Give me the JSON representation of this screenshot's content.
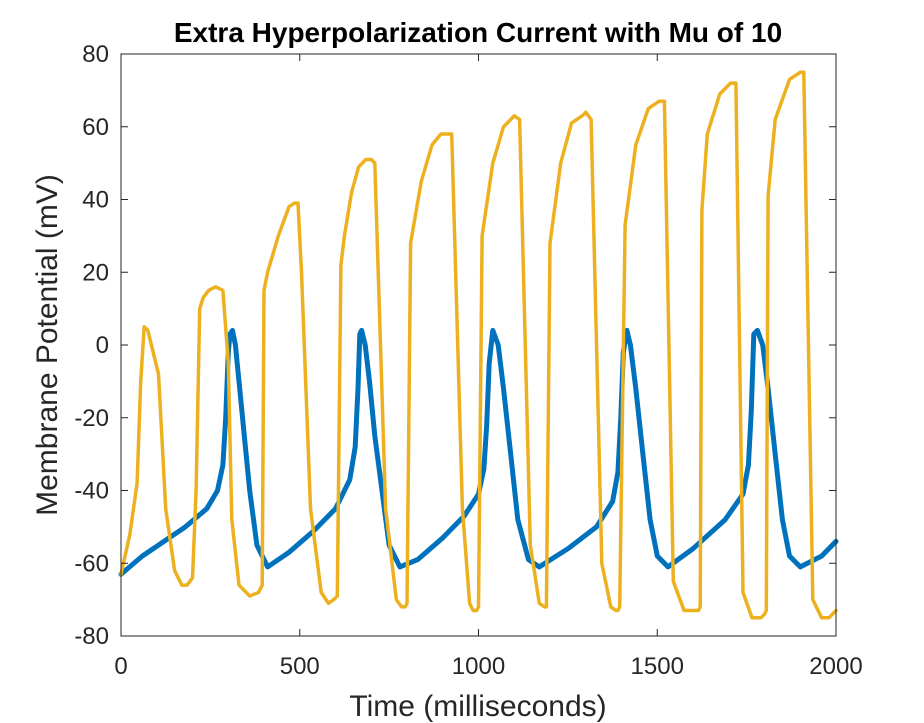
{
  "chart_data": {
    "type": "line",
    "title": "Extra Hyperpolarization Current with Mu of 10",
    "xlabel": "Time (milliseconds)",
    "ylabel": "Membrane Potential (mV)",
    "xlim": [
      0,
      2000
    ],
    "ylim": [
      -80,
      80
    ],
    "xticks": [
      0,
      500,
      1000,
      1500,
      2000
    ],
    "xtick_labels": [
      "0",
      "500",
      "1000",
      "1500",
      "2000"
    ],
    "yticks": [
      -80,
      -60,
      -40,
      -20,
      0,
      20,
      40,
      60,
      80
    ],
    "ytick_labels": [
      "-80",
      "-60",
      "-40",
      "-20",
      "0",
      "20",
      "40",
      "60",
      "80"
    ],
    "grid": false,
    "series": [
      {
        "color": "#0072BD",
        "line_width": 5,
        "x": [
          0,
          60,
          120,
          180,
          240,
          270,
          285,
          293,
          300,
          305,
          312,
          320,
          330,
          345,
          360,
          380,
          410,
          470,
          540,
          600,
          640,
          655,
          663,
          668,
          673,
          683,
          695,
          710,
          730,
          750,
          780,
          830,
          900,
          960,
          1000,
          1015,
          1023,
          1030,
          1040,
          1055,
          1070,
          1090,
          1110,
          1140,
          1170,
          1250,
          1330,
          1375,
          1390,
          1398,
          1405,
          1415,
          1425,
          1440,
          1460,
          1480,
          1500,
          1530,
          1600,
          1690,
          1740,
          1755,
          1763,
          1770,
          1780,
          1795,
          1810,
          1830,
          1850,
          1870,
          1900,
          1960,
          2000
        ],
        "y": [
          -63,
          -58,
          -54,
          -50,
          -45,
          -40,
          -33,
          -20,
          -2,
          3,
          4,
          0,
          -10,
          -25,
          -40,
          -55,
          -61,
          -57,
          -51,
          -45,
          -37,
          -28,
          -12,
          3,
          4,
          0,
          -10,
          -25,
          -40,
          -55,
          -61,
          -59,
          -53,
          -47,
          -41,
          -34,
          -22,
          -5,
          4,
          0,
          -12,
          -30,
          -48,
          -59,
          -61,
          -56,
          -50,
          -43,
          -35,
          -20,
          -2,
          4,
          0,
          -12,
          -30,
          -48,
          -58,
          -61,
          -56,
          -48,
          -41,
          -33,
          -18,
          3,
          4,
          0,
          -12,
          -30,
          -48,
          -58,
          -61,
          -58,
          -54
        ]
      },
      {
        "color": "#EDB120",
        "line_width": 3.5,
        "x": [
          0,
          25,
          45,
          55,
          65,
          75,
          90,
          105,
          125,
          150,
          170,
          185,
          200,
          210,
          220,
          230,
          245,
          265,
          285,
          300,
          310,
          330,
          360,
          385,
          395,
          400,
          410,
          440,
          470,
          485,
          495,
          505,
          530,
          560,
          580,
          595,
          605,
          615,
          625,
          645,
          665,
          685,
          700,
          710,
          740,
          770,
          785,
          795,
          800,
          810,
          840,
          870,
          895,
          905,
          925,
          955,
          975,
          985,
          995,
          1000,
          1010,
          1040,
          1070,
          1090,
          1100,
          1115,
          1145,
          1170,
          1185,
          1190,
          1200,
          1230,
          1260,
          1290,
          1300,
          1315,
          1345,
          1370,
          1385,
          1390,
          1395,
          1410,
          1440,
          1475,
          1505,
          1520,
          1545,
          1575,
          1600,
          1615,
          1620,
          1625,
          1640,
          1675,
          1705,
          1720,
          1740,
          1765,
          1790,
          1800,
          1805,
          1810,
          1830,
          1870,
          1900,
          1910,
          1935,
          1960,
          1980,
          2000
        ],
        "y": [
          -63,
          -52,
          -38,
          -10,
          5,
          4,
          -2,
          -8,
          -45,
          -62,
          -66,
          -66,
          -64,
          -40,
          10,
          13,
          15,
          16,
          15,
          -5,
          -48,
          -66,
          -69,
          -68,
          -66,
          15,
          20,
          30,
          38,
          39,
          39,
          20,
          -45,
          -68,
          -71,
          -70,
          -69,
          22,
          30,
          42,
          49,
          51,
          51,
          50,
          -45,
          -70,
          -72,
          -72,
          -71,
          28,
          45,
          55,
          58,
          58,
          58,
          -45,
          -71,
          -73,
          -73,
          -72,
          30,
          50,
          60,
          62,
          63,
          62,
          -55,
          -71,
          -72,
          -72,
          28,
          50,
          61,
          63,
          64,
          62,
          -60,
          -72,
          -73,
          -73,
          -72,
          33,
          55,
          65,
          67,
          67,
          -65,
          -73,
          -73,
          -73,
          -72,
          37,
          58,
          69,
          72,
          72,
          -68,
          -75,
          -75,
          -74,
          -73,
          41,
          62,
          73,
          75,
          75,
          -70,
          -75,
          -75,
          -73
        ]
      }
    ]
  }
}
